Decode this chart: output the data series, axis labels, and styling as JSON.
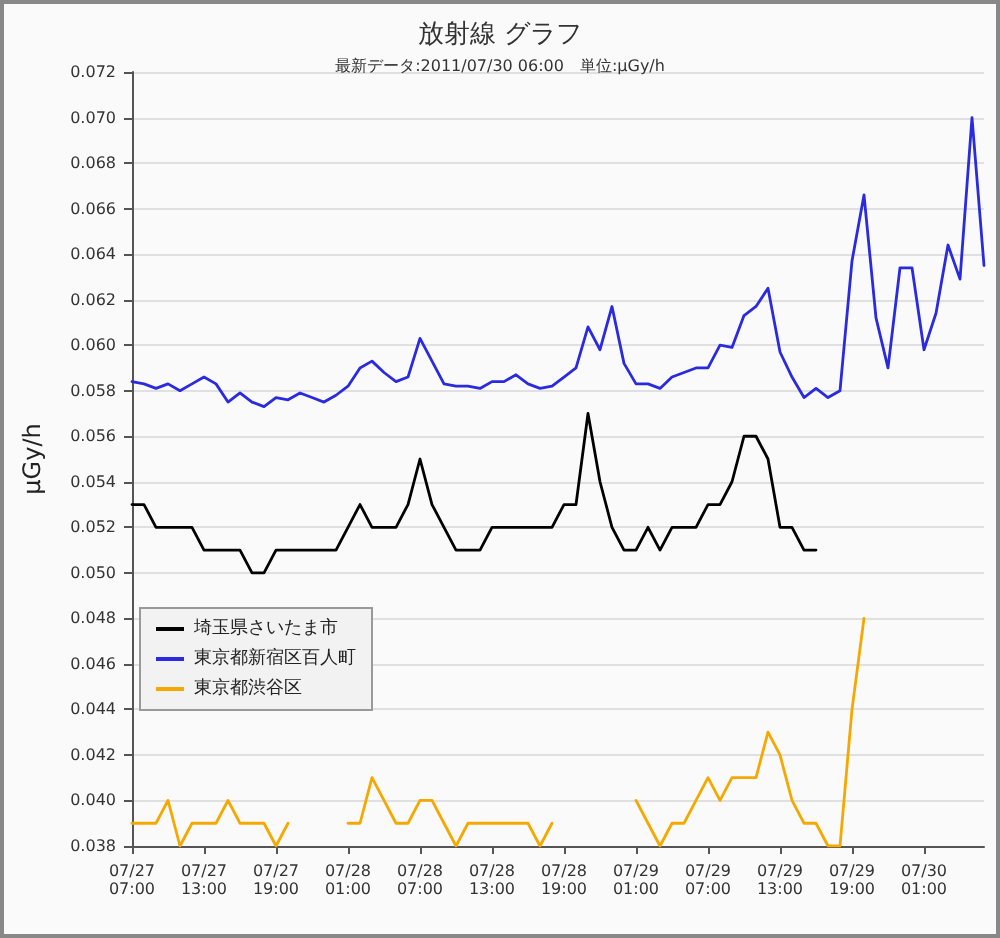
{
  "chart_data": {
    "type": "line",
    "title": "放射線 グラフ",
    "subtitle": "最新データ:2011/07/30 06:00　単位:μGy/h",
    "ylabel": "μGy/h",
    "x": [
      "2011-07-27T07:00",
      "2011-07-27T08:00",
      "2011-07-27T09:00",
      "2011-07-27T10:00",
      "2011-07-27T11:00",
      "2011-07-27T12:00",
      "2011-07-27T13:00",
      "2011-07-27T14:00",
      "2011-07-27T15:00",
      "2011-07-27T16:00",
      "2011-07-27T17:00",
      "2011-07-27T18:00",
      "2011-07-27T19:00",
      "2011-07-27T20:00",
      "2011-07-27T21:00",
      "2011-07-27T22:00",
      "2011-07-27T23:00",
      "2011-07-28T00:00",
      "2011-07-28T01:00",
      "2011-07-28T02:00",
      "2011-07-28T03:00",
      "2011-07-28T04:00",
      "2011-07-28T05:00",
      "2011-07-28T06:00",
      "2011-07-28T07:00",
      "2011-07-28T08:00",
      "2011-07-28T09:00",
      "2011-07-28T10:00",
      "2011-07-28T11:00",
      "2011-07-28T12:00",
      "2011-07-28T13:00",
      "2011-07-28T14:00",
      "2011-07-28T15:00",
      "2011-07-28T16:00",
      "2011-07-28T17:00",
      "2011-07-28T18:00",
      "2011-07-28T19:00",
      "2011-07-28T20:00",
      "2011-07-28T21:00",
      "2011-07-28T22:00",
      "2011-07-28T23:00",
      "2011-07-29T00:00",
      "2011-07-29T01:00",
      "2011-07-29T02:00",
      "2011-07-29T03:00",
      "2011-07-29T04:00",
      "2011-07-29T05:00",
      "2011-07-29T06:00",
      "2011-07-29T07:00",
      "2011-07-29T08:00",
      "2011-07-29T09:00",
      "2011-07-29T10:00",
      "2011-07-29T11:00",
      "2011-07-29T12:00",
      "2011-07-29T13:00",
      "2011-07-29T14:00",
      "2011-07-29T15:00",
      "2011-07-29T16:00",
      "2011-07-29T17:00",
      "2011-07-29T18:00",
      "2011-07-29T19:00",
      "2011-07-29T20:00",
      "2011-07-29T21:00",
      "2011-07-29T22:00",
      "2011-07-29T23:00",
      "2011-07-30T00:00",
      "2011-07-30T01:00",
      "2011-07-30T02:00",
      "2011-07-30T03:00",
      "2011-07-30T04:00",
      "2011-07-30T05:00",
      "2011-07-30T06:00"
    ],
    "series": [
      {
        "name": "埼玉県さいたま市",
        "color": "#000000",
        "values": [
          0.053,
          0.053,
          0.052,
          0.052,
          0.052,
          0.052,
          0.051,
          0.051,
          0.051,
          0.051,
          0.05,
          0.05,
          0.051,
          0.051,
          0.051,
          0.051,
          0.051,
          0.051,
          0.052,
          0.053,
          0.052,
          0.052,
          0.052,
          0.053,
          0.055,
          0.053,
          0.052,
          0.051,
          0.051,
          0.051,
          0.052,
          0.052,
          0.052,
          0.052,
          0.052,
          0.052,
          0.053,
          0.053,
          0.057,
          0.054,
          0.052,
          0.051,
          0.051,
          0.052,
          0.051,
          0.052,
          0.052,
          0.052,
          0.053,
          0.053,
          0.054,
          0.056,
          0.056,
          0.055,
          0.052,
          0.052,
          0.051,
          0.051,
          null,
          null,
          null,
          null,
          null,
          null,
          null,
          null,
          null,
          null,
          null,
          null,
          null,
          null
        ]
      },
      {
        "name": "東京都新宿区百人町",
        "color": "#2a2ae0",
        "values": [
          0.0584,
          0.0583,
          0.0581,
          0.0583,
          0.058,
          0.0583,
          0.0586,
          0.0583,
          0.0575,
          0.0579,
          0.0575,
          0.0573,
          0.0577,
          0.0576,
          0.0579,
          0.0577,
          0.0575,
          0.0578,
          0.0582,
          0.059,
          0.0593,
          0.0588,
          0.0584,
          0.0586,
          0.0603,
          0.0593,
          0.0583,
          0.0582,
          0.0582,
          0.0581,
          0.0584,
          0.0584,
          0.0587,
          0.0583,
          0.0581,
          0.0582,
          0.0586,
          0.059,
          0.0608,
          0.0598,
          0.0617,
          0.0592,
          0.0583,
          0.0583,
          0.0581,
          0.0586,
          0.0588,
          0.059,
          0.059,
          0.06,
          0.0599,
          0.0613,
          0.0617,
          0.0625,
          0.0597,
          0.0586,
          0.0577,
          0.0581,
          0.0577,
          0.058,
          0.0637,
          0.0666,
          0.0612,
          0.059,
          0.0634,
          0.0634,
          0.0598,
          0.0614,
          0.0644,
          0.0629,
          0.07,
          0.0635
        ]
      },
      {
        "name": "東京都渋谷区",
        "color": "#f5a800",
        "values": [
          0.039,
          0.039,
          0.039,
          0.04,
          0.038,
          0.039,
          0.039,
          0.039,
          0.04,
          0.039,
          0.039,
          0.039,
          0.038,
          0.039,
          null,
          null,
          null,
          null,
          0.039,
          0.039,
          0.041,
          0.04,
          0.039,
          0.039,
          0.04,
          0.04,
          0.039,
          0.038,
          0.039,
          0.039,
          0.039,
          0.039,
          0.039,
          0.039,
          0.038,
          0.039,
          null,
          null,
          null,
          null,
          null,
          null,
          0.04,
          0.039,
          0.038,
          0.039,
          0.039,
          0.04,
          0.041,
          0.04,
          0.041,
          0.041,
          0.041,
          0.043,
          0.042,
          0.04,
          0.039,
          0.039,
          0.038,
          0.038,
          0.044,
          0.048,
          null,
          null,
          null,
          null,
          null,
          null,
          null,
          null,
          null,
          null
        ]
      }
    ],
    "xlim": [
      "2011-07-27T07:00",
      "2011-07-30T06:00"
    ],
    "xticks": [
      {
        "value": "2011-07-27T07:00",
        "label": "07/27 07:00"
      },
      {
        "value": "2011-07-27T13:00",
        "label": "07/27 13:00"
      },
      {
        "value": "2011-07-27T19:00",
        "label": "07/27 19:00"
      },
      {
        "value": "2011-07-28T01:00",
        "label": "07/28 01:00"
      },
      {
        "value": "2011-07-28T07:00",
        "label": "07/28 07:00"
      },
      {
        "value": "2011-07-28T13:00",
        "label": "07/28 13:00"
      },
      {
        "value": "2011-07-28T19:00",
        "label": "07/28 19:00"
      },
      {
        "value": "2011-07-29T01:00",
        "label": "07/29 01:00"
      },
      {
        "value": "2011-07-29T07:00",
        "label": "07/29 07:00"
      },
      {
        "value": "2011-07-29T13:00",
        "label": "07/29 13:00"
      },
      {
        "value": "2011-07-29T19:00",
        "label": "07/29 19:00"
      },
      {
        "value": "2011-07-30T01:00",
        "label": "07/30 01:00"
      }
    ],
    "ylim": [
      0.038,
      0.072
    ],
    "yticks": [
      {
        "value": 0.038,
        "label": "0.038"
      },
      {
        "value": 0.04,
        "label": "0.040"
      },
      {
        "value": 0.042,
        "label": "0.042"
      },
      {
        "value": 0.044,
        "label": "0.044"
      },
      {
        "value": 0.046,
        "label": "0.046"
      },
      {
        "value": 0.048,
        "label": "0.048"
      },
      {
        "value": 0.05,
        "label": "0.050"
      },
      {
        "value": 0.052,
        "label": "0.052"
      },
      {
        "value": 0.054,
        "label": "0.054"
      },
      {
        "value": 0.056,
        "label": "0.056"
      },
      {
        "value": 0.058,
        "label": "0.058"
      },
      {
        "value": 0.06,
        "label": "0.060"
      },
      {
        "value": 0.062,
        "label": "0.062"
      },
      {
        "value": 0.064,
        "label": "0.064"
      },
      {
        "value": 0.066,
        "label": "0.066"
      },
      {
        "value": 0.068,
        "label": "0.068"
      },
      {
        "value": 0.07,
        "label": "0.070"
      },
      {
        "value": 0.072,
        "label": "0.072"
      }
    ],
    "grid": "y",
    "legend": "bottom left",
    "marker": "none",
    "line_style": "solid"
  }
}
